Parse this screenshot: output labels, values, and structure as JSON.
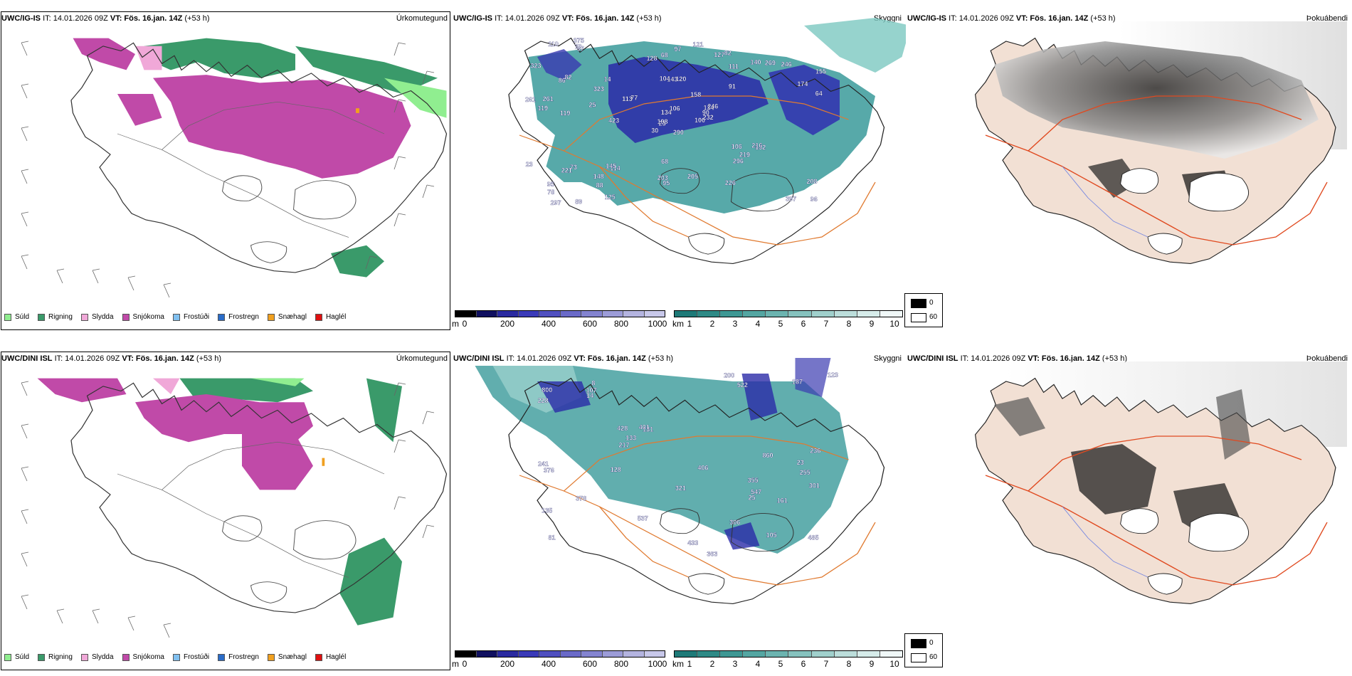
{
  "colors": {
    "sula": "#90ee90",
    "rigning": "#3a9a6a",
    "slydda": "#f0a8d8",
    "snjokoma": "#c04aa8",
    "frostudi": "#80c0f0",
    "frostregn": "#2a6cc8",
    "snaehagl": "#f0a020",
    "hagl": "#e01010",
    "road": "#e07a30",
    "outline": "#333333"
  },
  "rows": [
    {
      "precip": {
        "header_model": "UWC/IG-IS",
        "header_it": "IT: 14.01.2026 09Z",
        "header_vt_label": "VT:",
        "header_vt": "Fös. 16.jan. 14Z",
        "header_lead": "(+53 h)",
        "title": "Úrkomutegund"
      },
      "cloud": {
        "header_model": "UWC/IG-IS",
        "header_it": "IT: 14.01.2026 09Z",
        "header_vt_label": "VT:",
        "header_vt": "Fös. 16.jan. 14Z",
        "header_lead": "(+53 h)",
        "title": "Skyggni",
        "labels": [
          "290",
          "86",
          "23",
          "95",
          "134",
          "114",
          "82",
          "120",
          "111",
          "100",
          "97",
          "96",
          "119",
          "155",
          "30",
          "91",
          "89",
          "104",
          "158",
          "73",
          "77",
          "78",
          "88",
          "143",
          "246",
          "132",
          "82",
          "68",
          "119",
          "106",
          "64",
          "198",
          "203",
          "134",
          "14",
          "140",
          "145",
          "397",
          "208",
          "216",
          "121",
          "113",
          "25",
          "296",
          "125",
          "261",
          "90",
          "297",
          "95",
          "232",
          "221",
          "174",
          "323",
          "219",
          "226",
          "148",
          "70",
          "110",
          "205",
          "246",
          "97",
          "423",
          "261",
          "323",
          "269",
          "375",
          "127",
          "128",
          "106",
          "23",
          "68"
        ]
      },
      "vis": {
        "header_model": "UWC/IG-IS",
        "header_it": "IT: 14.01.2026 09Z",
        "header_vt_label": "VT:",
        "header_vt": "Fös. 16.jan. 14Z",
        "header_lead": "(+53 h)",
        "title": "Þokuábendi"
      }
    },
    {
      "precip": {
        "header_model": "UWC/DINI ISL",
        "header_it": "IT: 14.01.2026 09Z",
        "header_vt_label": "VT:",
        "header_vt": "Fös. 16.jan. 14Z",
        "header_lead": "(+53 h)",
        "title": "Úrkomutegund"
      },
      "cloud": {
        "header_model": "UWC/DINI ISL",
        "header_it": "IT: 14.01.2026 09Z",
        "header_vt_label": "VT:",
        "header_vt": "Fös. 16.jan. 14Z",
        "header_lead": "(+53 h)",
        "title": "Skyggni",
        "labels": [
          "355",
          "255",
          "81",
          "8",
          "131",
          "105",
          "135",
          "522",
          "428",
          "363",
          "228",
          "241",
          "800",
          "485",
          "537",
          "236",
          "321",
          "406",
          "401",
          "378",
          "123",
          "187",
          "217",
          "301",
          "200",
          "107",
          "547",
          "376",
          "14",
          "860",
          "433",
          "306",
          "133",
          "128",
          "23",
          "161",
          "25"
        ]
      },
      "vis": {
        "header_model": "UWC/DINI ISL",
        "header_it": "IT: 14.01.2026 09Z",
        "header_vt_label": "VT:",
        "header_vt": "Fös. 16.jan. 14Z",
        "header_lead": "(+53 h)",
        "title": "Þokuábendi"
      }
    }
  ],
  "legend_precip": [
    "Súld",
    "Rigning",
    "Slydda",
    "Snjókoma",
    "Frostúði",
    "Frostregn",
    "Snæhagl",
    "Haglél"
  ],
  "colorbar_m": {
    "unit": "m",
    "ticks": [
      "0",
      "200",
      "400",
      "600",
      "800",
      "1000"
    ]
  },
  "colorbar_km": {
    "unit": "km",
    "ticks": [
      "1",
      "2",
      "3",
      "4",
      "5",
      "6",
      "7",
      "8",
      "9",
      "10"
    ]
  },
  "fog_legend": {
    "low": "0",
    "high": "60"
  }
}
